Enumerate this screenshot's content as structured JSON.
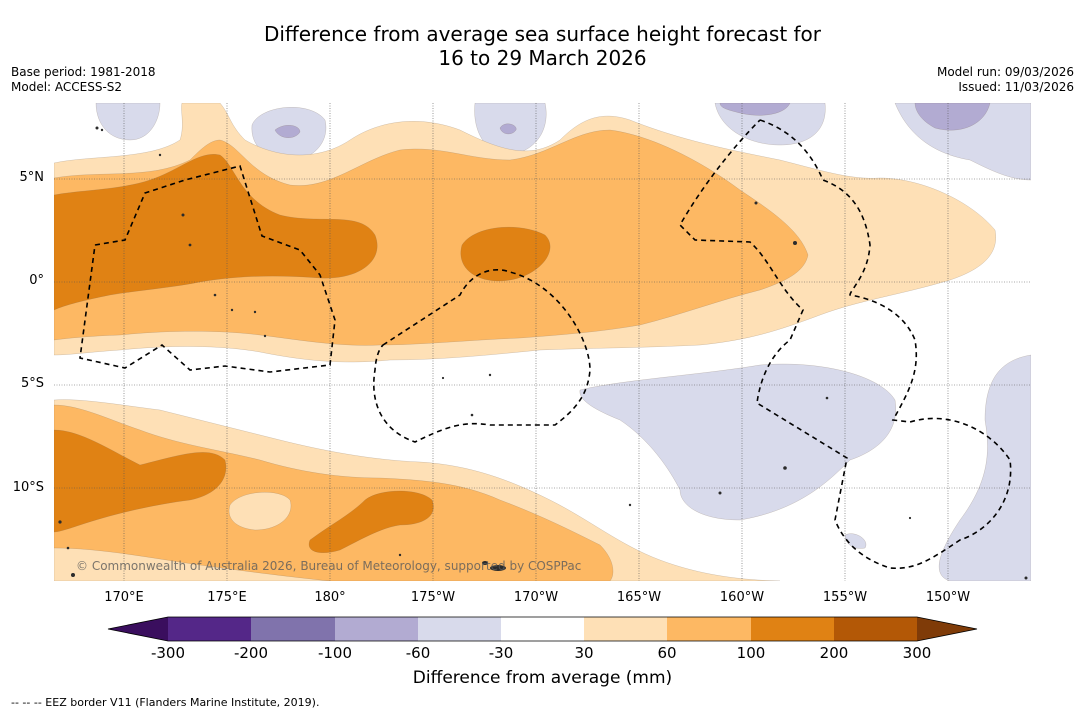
{
  "title": {
    "line1": "Difference from average sea surface height forecast for",
    "line2": "16 to 29 March 2026"
  },
  "meta_left": {
    "base_period": "Base period: 1981-2018",
    "model": "Model: ACCESS-S2"
  },
  "meta_right": {
    "model_run": "Model run: 09/03/2026",
    "issued": "Issued: 11/03/2026"
  },
  "map": {
    "lat_labels": [
      "5°N",
      "0°",
      "5°S",
      "10°S"
    ],
    "lon_labels": [
      "170°E",
      "175°E",
      "180°",
      "175°W",
      "170°W",
      "165°W",
      "160°W",
      "155°W",
      "150°W"
    ],
    "copyright": "© Commonwealth of Australia 2026, Bureau of Meteorology, supported by COSPPac",
    "land_color": "#2b2b2b",
    "eez_color": "#000000"
  },
  "colorbar": {
    "label": "Difference from average (mm)",
    "ticks": [
      "-300",
      "-200",
      "-100",
      "-60",
      "-30",
      "30",
      "60",
      "100",
      "200",
      "300"
    ],
    "colors": [
      "#3a0e5e",
      "#542788",
      "#8073ac",
      "#b2abd2",
      "#d8daeb",
      "#ffffff",
      "#fee0b6",
      "#fdb863",
      "#e08214",
      "#b35806",
      "#7f3b08"
    ]
  },
  "footnote": "--  --  -- EEZ border V11 (Flanders Marine Institute, 2019)."
}
